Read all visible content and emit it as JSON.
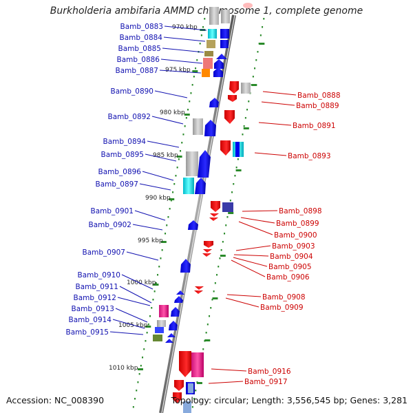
{
  "title": "Burkholderia ambifaria AMMD chromosome 1, complete genome",
  "accession": "Accession: NC_008390",
  "topology": "Topology: circular; Length: 3,556,545 bp; Genes: 3,281",
  "ruler_labels": [
    "970 kbp",
    "975 kbp",
    "980 kbp",
    "985 kbp",
    "990 kbp",
    "995 kbp",
    "1000 kbp",
    "1005 kbp",
    "1010 kbp"
  ],
  "left_genes": [
    "Bamb_0883",
    "Bamb_0884",
    "Bamb_0885",
    "Bamb_0886",
    "Bamb_0887",
    "Bamb_0890",
    "Bamb_0892",
    "Bamb_0894",
    "Bamb_0895",
    "Bamb_0896",
    "Bamb_0897",
    "Bamb_0901",
    "Bamb_0902",
    "Bamb_0907",
    "Bamb_0910",
    "Bamb_0911",
    "Bamb_0912",
    "Bamb_0913",
    "Bamb_0914",
    "Bamb_0915"
  ],
  "right_genes": [
    "Bamb_0888",
    "Bamb_0889",
    "Bamb_0891",
    "Bamb_0893",
    "Bamb_0898",
    "Bamb_0899",
    "Bamb_0900",
    "Bamb_0903",
    "Bamb_0904",
    "Bamb_0905",
    "Bamb_0906",
    "Bamb_0908",
    "Bamb_0909",
    "Bamb_0916",
    "Bamb_0917"
  ],
  "colors": {
    "left_label": "#1010b0",
    "right_label": "#cc0000",
    "backbone": "#888888",
    "ruler_tick": "#2a8a2a",
    "forward_gene": "#0000ff",
    "reverse_gene": "#ff0000"
  }
}
